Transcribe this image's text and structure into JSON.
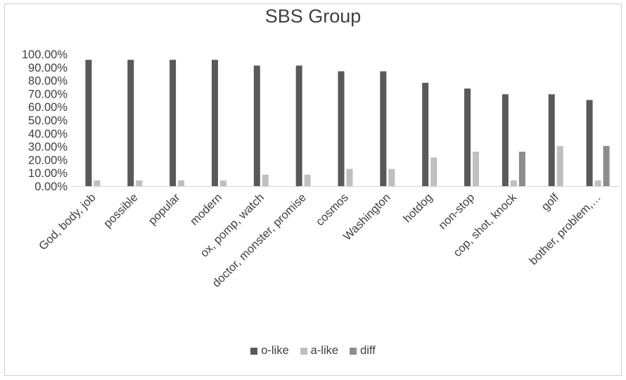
{
  "chart_data": {
    "type": "bar",
    "title": "SBS Group",
    "categories": [
      "God, body, job",
      "possible",
      "popular",
      "modern",
      "ox, pomp, watch",
      "doctor, monster, promise",
      "cosmos",
      "Washington",
      "hotdog",
      "non-stop",
      "cop, shot, knock",
      "golf",
      "bother, problem,…"
    ],
    "series": [
      {
        "name": "o-like",
        "color": "#595959",
        "values": [
          95.65,
          95.65,
          95.65,
          95.65,
          91.3,
          91.3,
          86.96,
          86.96,
          78.26,
          73.91,
          69.57,
          69.57,
          65.22
        ]
      },
      {
        "name": "a-like",
        "color": "#bfbfbf",
        "values": [
          4.35,
          4.35,
          4.35,
          4.35,
          8.7,
          8.7,
          13.04,
          13.04,
          21.74,
          26.09,
          4.35,
          30.43,
          4.35
        ]
      },
      {
        "name": "diff",
        "color": "#8c8c8c",
        "values": [
          null,
          null,
          null,
          null,
          null,
          null,
          null,
          null,
          null,
          null,
          26.09,
          null,
          30.43
        ]
      }
    ],
    "yticks": [
      "0.00%",
      "10.00%",
      "20.00%",
      "30.00%",
      "40.00%",
      "50.00%",
      "60.00%",
      "70.00%",
      "80.00%",
      "90.00%",
      "100.00%"
    ],
    "ylim": [
      0,
      100
    ],
    "grid": false,
    "legend": "bottom"
  }
}
